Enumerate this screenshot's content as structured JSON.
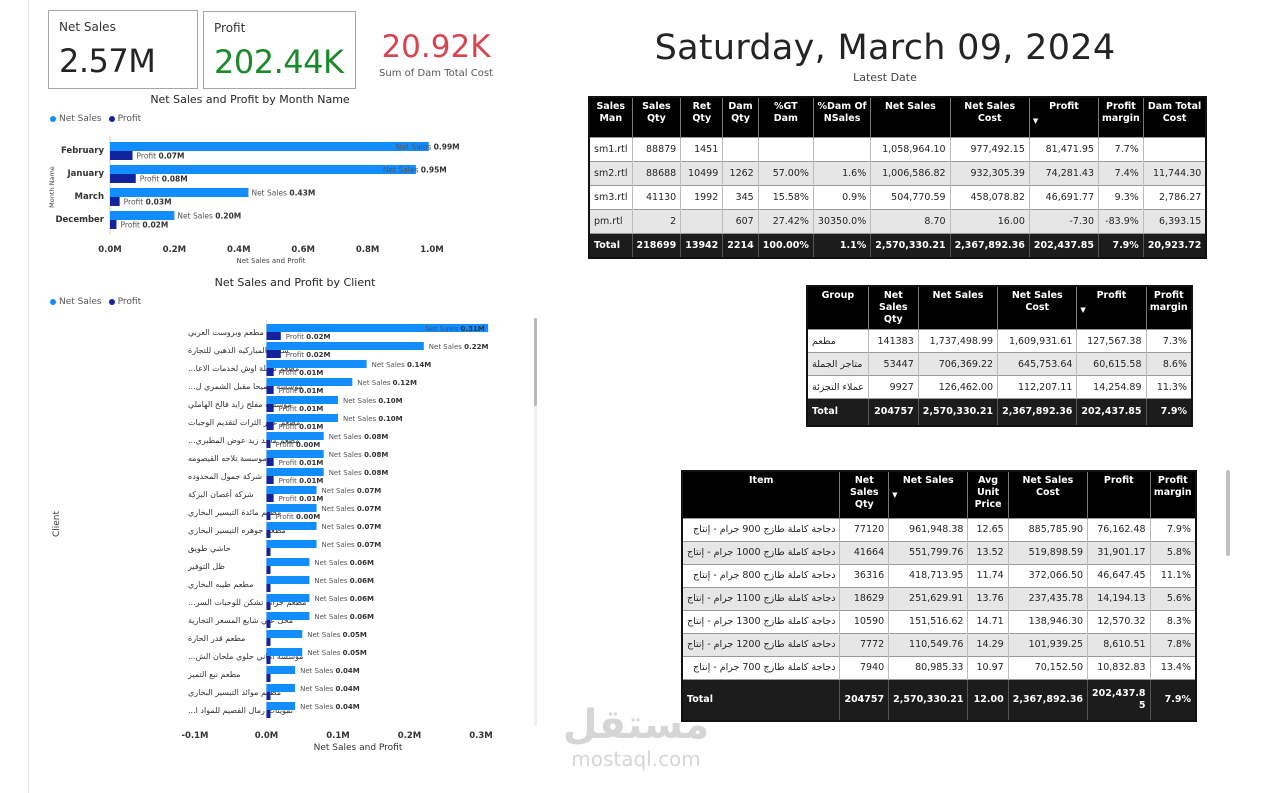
{
  "kpis": {
    "net_sales": {
      "label": "Net Sales",
      "value": "2.57M"
    },
    "profit": {
      "label": "Profit",
      "value": "202.44K"
    },
    "dam_cost": {
      "value": "20.92K",
      "label": "Sum of Dam Total Cost"
    }
  },
  "colors": {
    "net_sales": "#118DFF",
    "profit": "#12239E",
    "profit_kpi": "#1a8a2a",
    "dam_kpi": "#d64550"
  },
  "date": {
    "value": "Saturday, March 09, 2024",
    "label": "Latest Date"
  },
  "chart_data": [
    {
      "type": "bar",
      "orientation": "horizontal",
      "title": "Net Sales and Profit by Month Name",
      "xlabel": "Net Sales and Profit",
      "ylabel": "Month Name",
      "legend": [
        "Net Sales",
        "Profit"
      ],
      "legend_position": "top-left",
      "categories": [
        "February",
        "January",
        "March",
        "December"
      ],
      "series": [
        {
          "name": "Net Sales",
          "values": [
            0.99,
            0.95,
            0.43,
            0.2
          ],
          "labels": [
            "Net Sales",
            "Net Sales",
            "Net Sales",
            "Net Sales"
          ],
          "value_labels": [
            "0.99M",
            "0.95M",
            "0.43M",
            "0.20M"
          ]
        },
        {
          "name": "Profit",
          "values": [
            0.07,
            0.08,
            0.03,
            0.02
          ],
          "labels": [
            "Profit",
            "Profit",
            "Profit",
            "Profit"
          ],
          "value_labels": [
            "0.07M",
            "0.08M",
            "0.03M",
            "0.02M"
          ]
        }
      ],
      "xlim": [
        0,
        1.0
      ],
      "ticks": [
        "0.0M",
        "0.2M",
        "0.4M",
        "0.6M",
        "0.8M",
        "1.0M"
      ],
      "tick_values": [
        0,
        0.2,
        0.4,
        0.6,
        0.8,
        1.0
      ]
    },
    {
      "type": "bar",
      "orientation": "horizontal",
      "title": "Net Sales and Profit by Client",
      "xlabel": "Net Sales and Profit",
      "ylabel": "Client",
      "legend": [
        "Net Sales",
        "Profit"
      ],
      "legend_position": "top-left",
      "categories": [
        "مطعم وبروست العربي",
        "شركة المباركيه الذهبي للتجارة",
        "مطعم شعلة اوش لخدمات الاعا...",
        "موسسة وضيحا مقبل الشمري ل...",
        "مؤسسة مفلح زايد فالح الهاملي",
        "مطعم عنبر الثرات لتقديم الوجبات",
        "مطعم ماجد زيد عوض المطيري...",
        "موسسة تلاجه القيصومه",
        "شركة جمول المحدوده",
        "شركة أغصان البركة",
        "مطعم مائدة التيسير البخاري",
        "مطعم جوهره التيسير البخاري",
        "حاشي طويق",
        "ظل التوفير",
        "مطعم طيبه البخاري",
        "مطعم جراند تشكن للوجبات السر...",
        "محل علي شايع المسعر التجارية",
        "مطعم قدر الحارة",
        "مؤسسة اماني حلوي ملحان الش...",
        "مطعم نبع التميز",
        "مطعم موائد التيسير البخاري",
        "تموينات رمال القصيم للمواد ا..."
      ],
      "series": [
        {
          "name": "Net Sales",
          "values": [
            0.31,
            0.22,
            0.14,
            0.12,
            0.1,
            0.1,
            0.08,
            0.08,
            0.08,
            0.07,
            0.07,
            0.07,
            0.07,
            0.06,
            0.06,
            0.06,
            0.06,
            0.05,
            0.05,
            0.04,
            0.04,
            0.04
          ],
          "value_labels": [
            "0.31M",
            "0.22M",
            "0.14M",
            "0.12M",
            "0.10M",
            "0.10M",
            "0.08M",
            "0.08M",
            "0.08M",
            "0.07M",
            "0.07M",
            "0.07M",
            "0.07M",
            "0.06M",
            "0.06M",
            "0.06M",
            "0.06M",
            "0.05M",
            "0.05M",
            "0.04M",
            "0.04M",
            "0.04M"
          ]
        },
        {
          "name": "Profit",
          "values": [
            0.02,
            0.02,
            0.01,
            0.01,
            0.01,
            0.01,
            0.0,
            0.01,
            0.01,
            0.01,
            0.0,
            0.005,
            0.005,
            0.005,
            0.005,
            0.005,
            0.005,
            0.005,
            0.005,
            0.005,
            0.005,
            0.003
          ],
          "value_labels": [
            "0.02M",
            "0.02M",
            "0.01M",
            "0.01M",
            "0.01M",
            "0.01M",
            "0.00M",
            "0.01M",
            "0.01M",
            "0.01M",
            "0.00M",
            "",
            "",
            "",
            "",
            "",
            "",
            "",
            "",
            "",
            "",
            ""
          ]
        }
      ],
      "xlim": [
        -0.1,
        0.3
      ],
      "ticks": [
        "-0.1M",
        "0.0M",
        "0.1M",
        "0.2M",
        "0.3M"
      ],
      "tick_values": [
        -0.1,
        0,
        0.1,
        0.2,
        0.3
      ]
    }
  ],
  "sales_table": {
    "headers": [
      "Sales Man",
      "Sales Qty",
      "Ret Qty",
      "Dam Qty",
      "%GT Dam",
      "%Dam Of NSales",
      "Net Sales",
      "Net Sales Cost",
      "Profit",
      "Profit margin",
      "Dam Total Cost"
    ],
    "sort_col": 8,
    "rows": [
      [
        "sm1.rtl",
        "88879",
        "1451",
        "",
        "",
        "",
        "1,058,964.10",
        "977,492.15",
        "81,471.95",
        "7.7%",
        ""
      ],
      [
        "sm2.rtl",
        "88688",
        "10499",
        "1262",
        "57.00%",
        "1.6%",
        "1,006,586.82",
        "932,305.39",
        "74,281.43",
        "7.4%",
        "11,744.30"
      ],
      [
        "sm3.rtl",
        "41130",
        "1992",
        "345",
        "15.58%",
        "0.9%",
        "504,770.59",
        "458,078.82",
        "46,691.77",
        "9.3%",
        "2,786.27"
      ],
      [
        "pm.rtl",
        "2",
        "",
        "607",
        "27.42%",
        "30350.0%",
        "8.70",
        "16.00",
        "-7.30",
        "-83.9%",
        "6,393.15"
      ]
    ],
    "total": [
      "Total",
      "218699",
      "13942",
      "2214",
      "100.00%",
      "1.1%",
      "2,570,330.21",
      "2,367,892.36",
      "202,437.85",
      "7.9%",
      "20,923.72"
    ]
  },
  "group_table": {
    "headers": [
      "Group",
      "Net Sales Qty",
      "Net Sales",
      "Net Sales Cost",
      "Profit",
      "Profit margin"
    ],
    "sort_col": 4,
    "rows": [
      [
        "مطعم",
        "141383",
        "1,737,498.99",
        "1,609,931.61",
        "127,567.38",
        "7.3%"
      ],
      [
        "متاجر الجملة",
        "53447",
        "706,369.22",
        "645,753.64",
        "60,615.58",
        "8.6%"
      ],
      [
        "عملاء التجزئة",
        "9927",
        "126,462.00",
        "112,207.11",
        "14,254.89",
        "11.3%"
      ]
    ],
    "total": [
      "Total",
      "204757",
      "2,570,330.21",
      "2,367,892.36",
      "202,437.85",
      "7.9%"
    ]
  },
  "item_table": {
    "headers": [
      "Item",
      "Net Sales Qty",
      "Net Sales",
      "Avg Unit Price",
      "Net Sales Cost",
      "Profit",
      "Profit margin"
    ],
    "sort_col": 2,
    "rows": [
      [
        "دجاجة كاملة طازج 900 جرام - إنتاج",
        "77120",
        "961,948.38",
        "12.65",
        "885,785.90",
        "76,162.48",
        "7.9%"
      ],
      [
        "دجاجة كاملة طازج 1000 جرام - إنتاج",
        "41664",
        "551,799.76",
        "13.52",
        "519,898.59",
        "31,901.17",
        "5.8%"
      ],
      [
        "دجاجة كاملة طازج 800 جرام - إنتاج",
        "36316",
        "418,713.95",
        "11.74",
        "372,066.50",
        "46,647.45",
        "11.1%"
      ],
      [
        "دجاجة كاملة طازج 1100 جرام - إنتاج",
        "18629",
        "251,629.91",
        "13.76",
        "237,435.78",
        "14,194.13",
        "5.6%"
      ],
      [
        "دجاجة كاملة طازج 1300 جرام - إنتاج",
        "10590",
        "151,516.62",
        "14.71",
        "138,946.30",
        "12,570.32",
        "8.3%"
      ],
      [
        "دجاجة كاملة طازج 1200 جرام - إنتاج",
        "7772",
        "110,549.76",
        "14.29",
        "101,939.25",
        "8,610.51",
        "7.8%"
      ],
      [
        "دجاجة كاملة طازج 700 جرام - إنتاج",
        "7940",
        "80,985.33",
        "10.97",
        "70,152.50",
        "10,832.83",
        "13.4%"
      ]
    ],
    "total": [
      "Total",
      "204757",
      "2,570,330.21",
      "12.00",
      "2,367,892.36",
      "202,437.8\n5",
      "7.9%"
    ]
  },
  "watermark": {
    "arabic": "مستقل",
    "latin": "mostaql.com"
  }
}
